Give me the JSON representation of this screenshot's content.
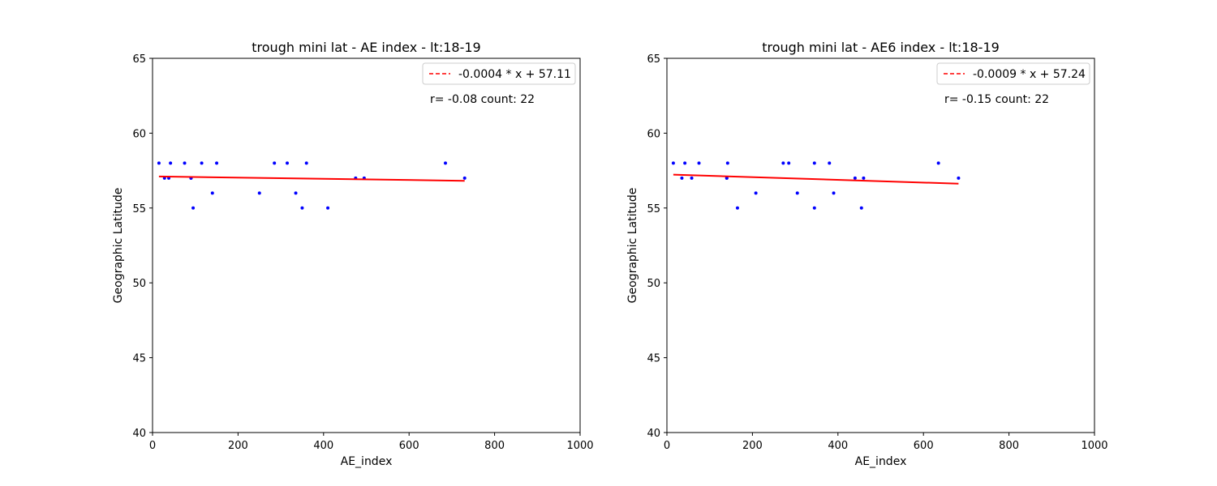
{
  "chart_data": [
    {
      "type": "scatter",
      "title": "trough mini lat - AE index - lt:18-19",
      "xlabel": "AE_index",
      "ylabel": "Geographic Latitude",
      "xlim": [
        0,
        1000
      ],
      "ylim": [
        40,
        65
      ],
      "xticks": [
        0,
        200,
        400,
        600,
        800,
        1000
      ],
      "yticks": [
        40,
        45,
        50,
        55,
        60,
        65
      ],
      "grid": false,
      "legend_position": "top-right",
      "colors": {
        "points": "#0000ff",
        "fit": "#ff0000"
      },
      "series": [
        {
          "kind": "points",
          "points": [
            [
              15,
              58
            ],
            [
              28,
              57
            ],
            [
              38,
              57
            ],
            [
              42,
              58
            ],
            [
              75,
              58
            ],
            [
              90,
              57
            ],
            [
              95,
              55
            ],
            [
              115,
              58
            ],
            [
              140,
              56
            ],
            [
              150,
              58
            ],
            [
              250,
              56
            ],
            [
              285,
              58
            ],
            [
              315,
              58
            ],
            [
              335,
              56
            ],
            [
              350,
              55
            ],
            [
              360,
              58
            ],
            [
              410,
              55
            ],
            [
              475,
              57
            ],
            [
              495,
              57
            ],
            [
              685,
              58
            ],
            [
              730,
              57
            ],
            [
              90,
              57
            ]
          ]
        },
        {
          "kind": "fit",
          "name": "-0.0004 * x + 57.11",
          "slope": -0.0004,
          "intercept": 57.11,
          "x_range": [
            15,
            730
          ]
        }
      ],
      "annotation": "r= -0.08 count: 22"
    },
    {
      "type": "scatter",
      "title": "trough mini lat - AE6 index - lt:18-19",
      "xlabel": "AE_index",
      "ylabel": "Geographic Latitude",
      "xlim": [
        0,
        1000
      ],
      "ylim": [
        40,
        65
      ],
      "xticks": [
        0,
        200,
        400,
        600,
        800,
        1000
      ],
      "yticks": [
        40,
        45,
        50,
        55,
        60,
        65
      ],
      "grid": false,
      "legend_position": "top-right",
      "colors": {
        "points": "#0000ff",
        "fit": "#ff0000"
      },
      "series": [
        {
          "kind": "points",
          "points": [
            [
              15,
              58
            ],
            [
              35,
              57
            ],
            [
              42,
              58
            ],
            [
              58,
              57
            ],
            [
              75,
              58
            ],
            [
              140,
              57
            ],
            [
              142,
              58
            ],
            [
              165,
              55
            ],
            [
              208,
              56
            ],
            [
              272,
              58
            ],
            [
              285,
              58
            ],
            [
              305,
              56
            ],
            [
              345,
              58
            ],
            [
              345,
              55
            ],
            [
              380,
              58
            ],
            [
              390,
              56
            ],
            [
              440,
              57
            ],
            [
              455,
              55
            ],
            [
              460,
              57
            ],
            [
              635,
              58
            ],
            [
              682,
              57
            ],
            [
              140,
              57
            ]
          ]
        },
        {
          "kind": "fit",
          "name": "-0.0009 * x + 57.24",
          "slope": -0.0009,
          "intercept": 57.24,
          "x_range": [
            15,
            682
          ]
        }
      ],
      "annotation": "r= -0.15 count: 22"
    }
  ]
}
